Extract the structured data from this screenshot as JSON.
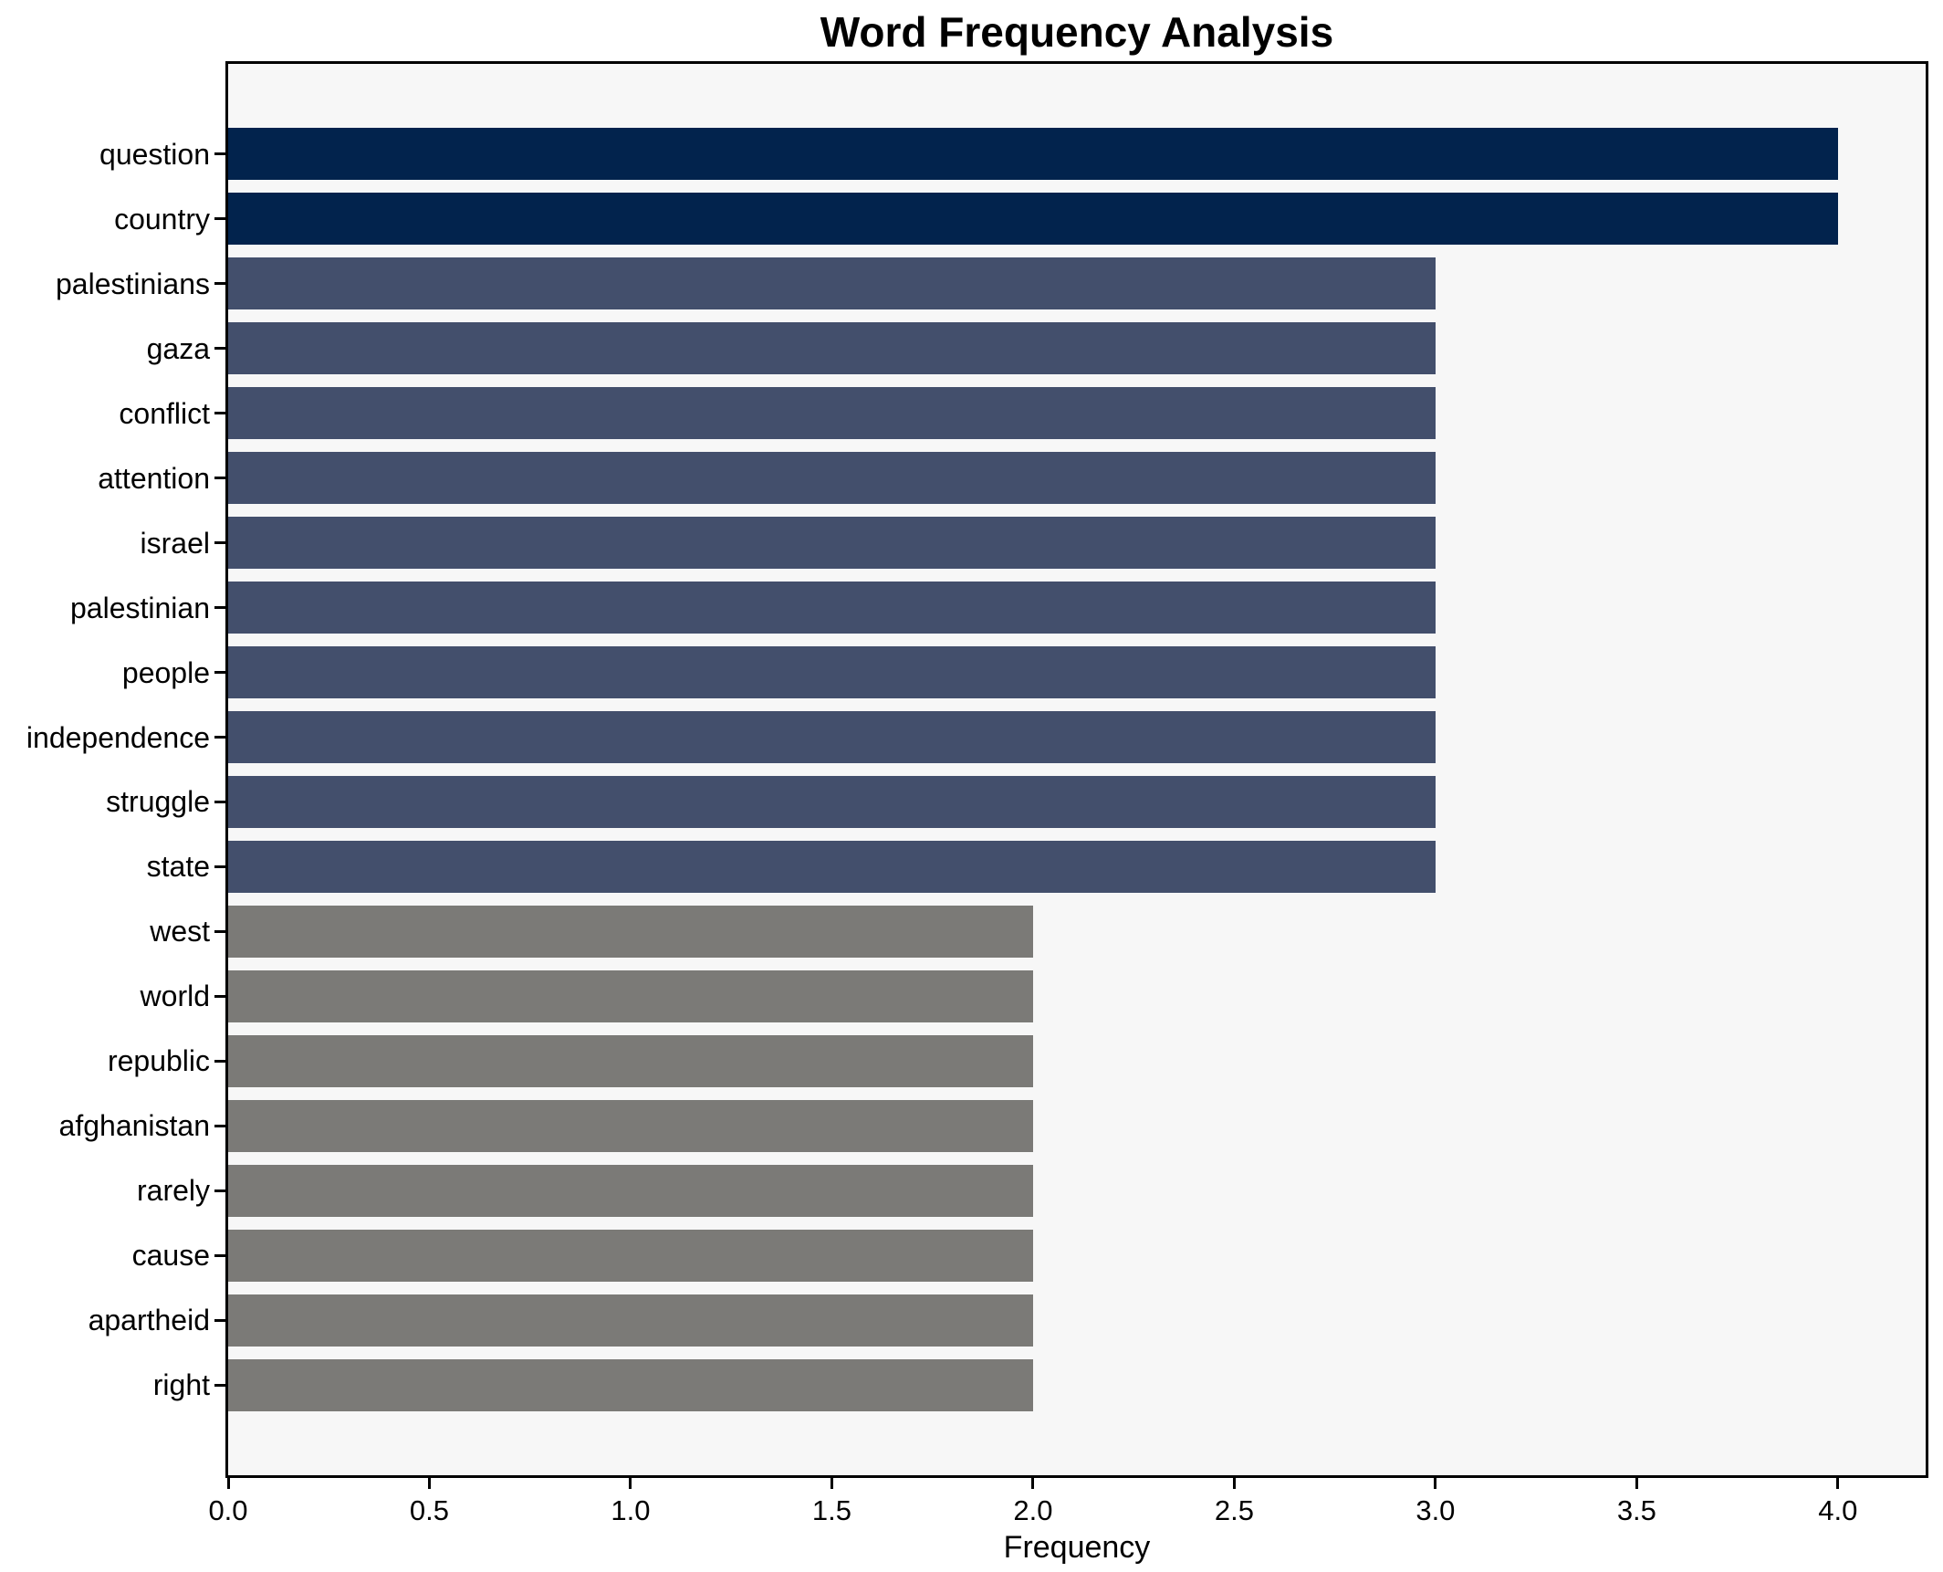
{
  "colors": {
    "figure_bg": "#ffffff",
    "plot_bg": "#f7f7f7",
    "spine": "#000000",
    "text": "#000000",
    "bar_navy": "#02234d",
    "bar_slate": "#434f6c",
    "bar_gray": "#7b7a77"
  },
  "chart_data": {
    "type": "bar",
    "orientation": "horizontal",
    "title": "Word Frequency Analysis",
    "xlabel": "Frequency",
    "ylabel": "",
    "grid": false,
    "legend": "none",
    "categories": [
      "question",
      "country",
      "palestinians",
      "gaza",
      "conflict",
      "attention",
      "israel",
      "palestinian",
      "people",
      "independence",
      "struggle",
      "state",
      "west",
      "world",
      "republic",
      "afghanistan",
      "rarely",
      "cause",
      "apartheid",
      "right"
    ],
    "values": [
      4,
      4,
      3,
      3,
      3,
      3,
      3,
      3,
      3,
      3,
      3,
      3,
      2,
      2,
      2,
      2,
      2,
      2,
      2,
      2
    ],
    "bar_colors": [
      "#02234d",
      "#02234d",
      "#434f6c",
      "#434f6c",
      "#434f6c",
      "#434f6c",
      "#434f6c",
      "#434f6c",
      "#434f6c",
      "#434f6c",
      "#434f6c",
      "#434f6c",
      "#7b7a77",
      "#7b7a77",
      "#7b7a77",
      "#7b7a77",
      "#7b7a77",
      "#7b7a77",
      "#7b7a77",
      "#7b7a77"
    ],
    "xlim": [
      0.0,
      4.218
    ],
    "xticks": [
      0.0,
      0.5,
      1.0,
      1.5,
      2.0,
      2.5,
      3.0,
      3.5,
      4.0
    ],
    "xtick_labels": [
      "0.0",
      "0.5",
      "1.0",
      "1.5",
      "2.0",
      "2.5",
      "3.0",
      "3.5",
      "4.0"
    ]
  }
}
